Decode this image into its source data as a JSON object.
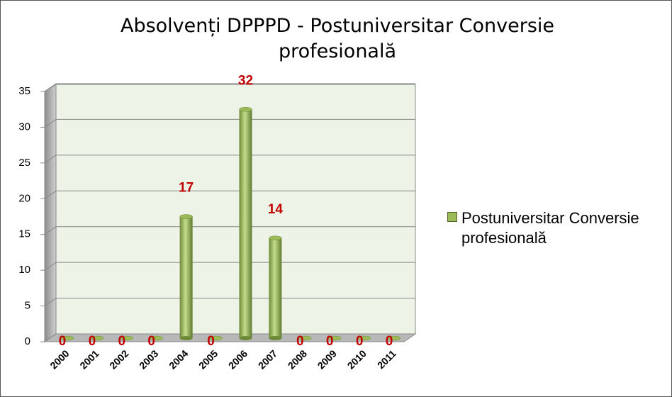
{
  "chart_data": {
    "type": "bar",
    "title": "Absolvenți DPPPD - Postuniversitar Conversie profesională",
    "categories": [
      "2000",
      "2001",
      "2002",
      "2003",
      "2004",
      "2005",
      "2006",
      "2007",
      "2008",
      "2009",
      "2010",
      "2011"
    ],
    "series": [
      {
        "name": "Postuniversitar Conversie profesională",
        "color": "#9bbb59",
        "values": [
          0,
          0,
          0,
          0,
          17,
          0,
          32,
          14,
          0,
          0,
          0,
          0
        ]
      }
    ],
    "ylim": [
      0,
      35
    ],
    "yticks": [
      0,
      5,
      10,
      15,
      20,
      25,
      30,
      35
    ],
    "grid": true,
    "legend": "right",
    "value_label_color": "#c00000"
  }
}
